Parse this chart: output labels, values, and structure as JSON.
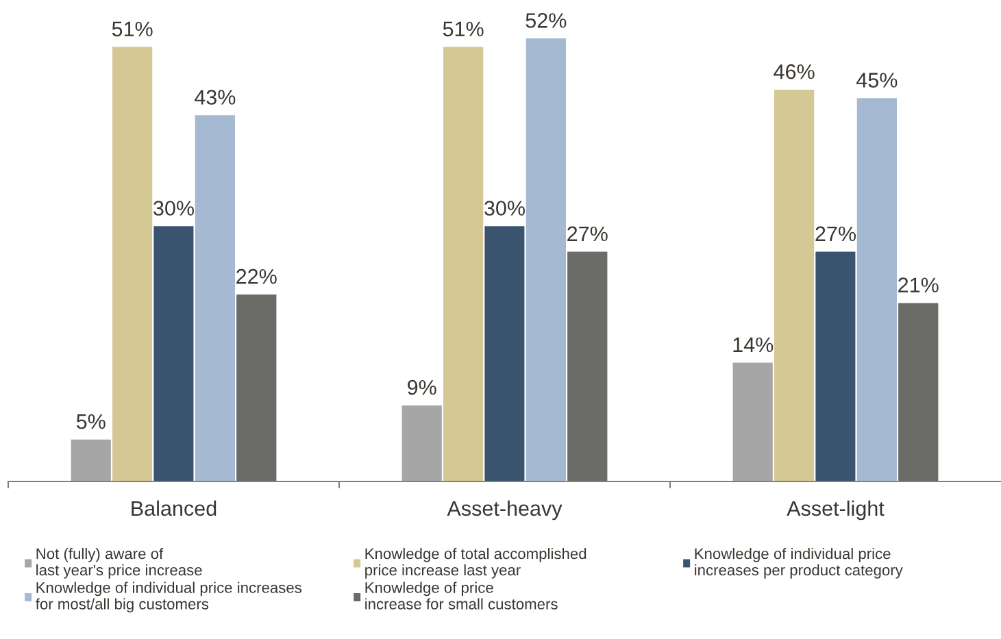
{
  "chart_data": {
    "type": "bar",
    "categories": [
      "Balanced",
      "Asset-heavy",
      "Asset-light"
    ],
    "series": [
      {
        "name": "Not (fully) aware of\nlast year's price increase",
        "color": "#a6a6a6",
        "values": [
          5,
          9,
          14
        ],
        "value_labels": [
          "5%",
          "9%",
          "14%"
        ]
      },
      {
        "name": "Knowledge of total accomplished\nprice increase last year",
        "color": "#d4c894",
        "values": [
          51,
          51,
          46
        ],
        "value_labels": [
          "51%",
          "51%",
          "46%"
        ]
      },
      {
        "name": "Knowledge of individual price\nincreases per product category",
        "color": "#3a5470",
        "values": [
          30,
          30,
          27
        ],
        "value_labels": [
          "30%",
          "30%",
          "27%"
        ]
      },
      {
        "name": "Knowledge of individual price increases\nfor most/all big customers",
        "color": "#a5b9d2",
        "values": [
          43,
          52,
          45
        ],
        "value_labels": [
          "43%",
          "52%",
          "45%"
        ]
      },
      {
        "name": "Knowledge of price\nincrease for small customers",
        "color": "#6b6c67",
        "values": [
          22,
          27,
          21
        ],
        "value_labels": [
          "22%",
          "27%",
          "21%"
        ]
      }
    ],
    "legend": "bottom"
  }
}
